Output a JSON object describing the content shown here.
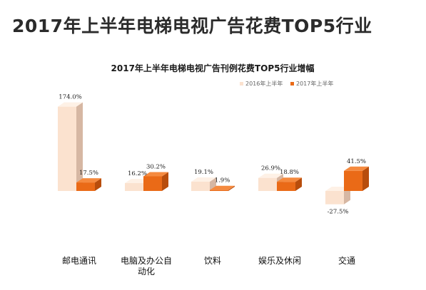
{
  "title": "2017年上半年电梯电视广告花费TOP5行业",
  "colors": {
    "series_2016_front": "#fbe2cf",
    "series_2016_top": "#fef1e6",
    "series_2016_side": "#d6b7a3",
    "series_2017_front": "#ea6a17",
    "series_2017_top": "#f58a3f",
    "series_2017_side": "#b84d0c"
  },
  "chart_data": {
    "type": "bar",
    "title": "2017年上半年电梯电视广告刊例花费TOP5行业增幅",
    "categories": [
      [
        "邮电通讯"
      ],
      [
        "电脑及办公自",
        "动化"
      ],
      [
        "饮料"
      ],
      [
        "娱乐及休闲"
      ],
      [
        "交通"
      ]
    ],
    "series": [
      {
        "name": "2016年上半年",
        "values": [
          174.0,
          16.2,
          19.1,
          26.9,
          -27.5
        ]
      },
      {
        "name": "2017年上半年",
        "values": [
          17.5,
          30.2,
          1.9,
          18.8,
          41.5
        ]
      }
    ],
    "data_labels": [
      [
        "174.0%",
        "16.2%",
        "19.1%",
        "26.9%",
        "-27.5%"
      ],
      [
        "17.5%",
        "30.2%",
        "1.9%",
        "18.8%",
        "41.5%"
      ]
    ],
    "unit": "%",
    "legend_position": "top-right",
    "style": "3d-clustered-column",
    "grid": false
  }
}
